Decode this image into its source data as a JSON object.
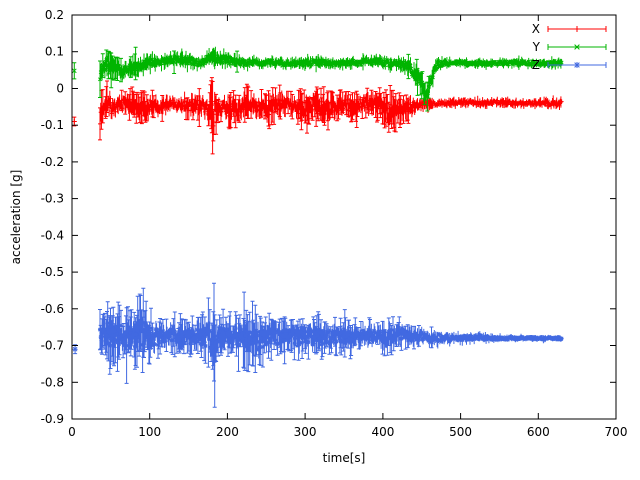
{
  "figure": {
    "background": "#ffffff",
    "axis_color": "#000000",
    "text_color": "#000000"
  },
  "chart_data": {
    "type": "scatter",
    "style": "points-with-errorbars",
    "title": "",
    "xlabel": "time[s]",
    "ylabel": "acceleration [g]",
    "xlim": [
      0,
      700
    ],
    "ylim": [
      -0.9,
      0.2
    ],
    "grid": false,
    "sample_step_s": 0.9,
    "xticks": [
      {
        "value": 0,
        "label": "0"
      },
      {
        "value": 100,
        "label": "100"
      },
      {
        "value": 200,
        "label": "200"
      },
      {
        "value": 300,
        "label": "300"
      },
      {
        "value": 400,
        "label": "400"
      },
      {
        "value": 500,
        "label": "500"
      },
      {
        "value": 600,
        "label": "600"
      },
      {
        "value": 700,
        "label": "700"
      }
    ],
    "yticks": [
      {
        "value": -0.9,
        "label": "-0.9"
      },
      {
        "value": -0.8,
        "label": "-0.8"
      },
      {
        "value": -0.7,
        "label": "-0.7"
      },
      {
        "value": -0.6,
        "label": "-0.6"
      },
      {
        "value": -0.5,
        "label": "-0.5"
      },
      {
        "value": -0.4,
        "label": "-0.4"
      },
      {
        "value": -0.3,
        "label": "-0.3"
      },
      {
        "value": -0.2,
        "label": "-0.2"
      },
      {
        "value": -0.1,
        "label": "-0.1"
      },
      {
        "value": 0,
        "label": "0"
      },
      {
        "value": 0.1,
        "label": "0.1"
      },
      {
        "value": 0.2,
        "label": "0.2"
      }
    ],
    "legend": {
      "position": "top-right",
      "entries": [
        {
          "label": "X",
          "color": "#ff0000",
          "marker": "plus"
        },
        {
          "label": "Y",
          "color": "#00b400",
          "marker": "cross"
        },
        {
          "label": "Z",
          "color": "#4169e1",
          "marker": "asterisk"
        }
      ]
    },
    "series": [
      {
        "name": "X",
        "color": "#ff0000",
        "marker": "plus",
        "seed": 101,
        "isolated_points": [
          [
            3,
            -0.09,
            0.012
          ]
        ],
        "envelope": [
          [
            36,
            -0.08,
            0.05
          ],
          [
            40,
            -0.04,
            0.045
          ],
          [
            46,
            -0.03,
            0.04
          ],
          [
            52,
            -0.06,
            0.035
          ],
          [
            58,
            -0.05,
            0.03
          ],
          [
            64,
            -0.045,
            0.03
          ],
          [
            72,
            -0.04,
            0.035
          ],
          [
            80,
            -0.05,
            0.04
          ],
          [
            88,
            -0.055,
            0.045
          ],
          [
            96,
            -0.05,
            0.035
          ],
          [
            104,
            -0.045,
            0.03
          ],
          [
            112,
            -0.05,
            0.025
          ],
          [
            120,
            -0.045,
            0.02
          ],
          [
            130,
            -0.04,
            0.02
          ],
          [
            140,
            -0.045,
            0.025
          ],
          [
            150,
            -0.05,
            0.03
          ],
          [
            160,
            -0.045,
            0.03
          ],
          [
            170,
            -0.05,
            0.03
          ],
          [
            178,
            -0.055,
            0.05
          ],
          [
            182,
            -0.07,
            0.1
          ],
          [
            186,
            -0.055,
            0.04
          ],
          [
            195,
            -0.05,
            0.035
          ],
          [
            205,
            -0.06,
            0.045
          ],
          [
            215,
            -0.055,
            0.04
          ],
          [
            222,
            -0.05,
            0.045
          ],
          [
            230,
            -0.045,
            0.035
          ],
          [
            240,
            -0.05,
            0.03
          ],
          [
            250,
            -0.055,
            0.04
          ],
          [
            258,
            -0.05,
            0.045
          ],
          [
            266,
            -0.045,
            0.035
          ],
          [
            275,
            -0.04,
            0.03
          ],
          [
            285,
            -0.045,
            0.03
          ],
          [
            295,
            -0.06,
            0.045
          ],
          [
            305,
            -0.055,
            0.045
          ],
          [
            312,
            -0.05,
            0.05
          ],
          [
            320,
            -0.055,
            0.045
          ],
          [
            328,
            -0.06,
            0.04
          ],
          [
            336,
            -0.05,
            0.035
          ],
          [
            344,
            -0.04,
            0.03
          ],
          [
            352,
            -0.045,
            0.035
          ],
          [
            360,
            -0.05,
            0.04
          ],
          [
            368,
            -0.045,
            0.03
          ],
          [
            376,
            -0.04,
            0.03
          ],
          [
            384,
            -0.045,
            0.03
          ],
          [
            392,
            -0.04,
            0.035
          ],
          [
            400,
            -0.05,
            0.04
          ],
          [
            408,
            -0.065,
            0.05
          ],
          [
            416,
            -0.06,
            0.045
          ],
          [
            424,
            -0.055,
            0.035
          ],
          [
            432,
            -0.05,
            0.03
          ],
          [
            440,
            -0.05,
            0.025
          ],
          [
            448,
            -0.045,
            0.02
          ],
          [
            456,
            -0.04,
            0.018
          ],
          [
            465,
            -0.042,
            0.015
          ],
          [
            475,
            -0.04,
            0.013
          ],
          [
            490,
            -0.04,
            0.012
          ],
          [
            510,
            -0.038,
            0.012
          ],
          [
            530,
            -0.04,
            0.012
          ],
          [
            550,
            -0.038,
            0.012
          ],
          [
            570,
            -0.04,
            0.012
          ],
          [
            590,
            -0.04,
            0.012
          ],
          [
            610,
            -0.04,
            0.013
          ],
          [
            630,
            -0.04,
            0.015
          ]
        ]
      },
      {
        "name": "Y",
        "color": "#00b400",
        "marker": "cross",
        "seed": 202,
        "isolated_points": [
          [
            3,
            0.048,
            0.022
          ]
        ],
        "envelope": [
          [
            36,
            0.04,
            0.045
          ],
          [
            40,
            0.06,
            0.04
          ],
          [
            46,
            0.07,
            0.035
          ],
          [
            52,
            0.055,
            0.03
          ],
          [
            58,
            0.05,
            0.03
          ],
          [
            64,
            0.045,
            0.03
          ],
          [
            70,
            0.05,
            0.028
          ],
          [
            78,
            0.055,
            0.025
          ],
          [
            86,
            0.06,
            0.025
          ],
          [
            94,
            0.065,
            0.022
          ],
          [
            102,
            0.07,
            0.02
          ],
          [
            110,
            0.072,
            0.02
          ],
          [
            120,
            0.075,
            0.02
          ],
          [
            130,
            0.08,
            0.02
          ],
          [
            140,
            0.078,
            0.018
          ],
          [
            150,
            0.075,
            0.02
          ],
          [
            158,
            0.072,
            0.018
          ],
          [
            166,
            0.07,
            0.015
          ],
          [
            174,
            0.078,
            0.022
          ],
          [
            182,
            0.085,
            0.025
          ],
          [
            190,
            0.08,
            0.02
          ],
          [
            198,
            0.078,
            0.018
          ],
          [
            206,
            0.075,
            0.02
          ],
          [
            215,
            0.072,
            0.018
          ],
          [
            225,
            0.07,
            0.015
          ],
          [
            235,
            0.072,
            0.015
          ],
          [
            245,
            0.07,
            0.014
          ],
          [
            255,
            0.072,
            0.014
          ],
          [
            265,
            0.07,
            0.014
          ],
          [
            275,
            0.068,
            0.014
          ],
          [
            285,
            0.07,
            0.014
          ],
          [
            295,
            0.068,
            0.015
          ],
          [
            305,
            0.07,
            0.016
          ],
          [
            315,
            0.072,
            0.016
          ],
          [
            325,
            0.07,
            0.015
          ],
          [
            335,
            0.068,
            0.014
          ],
          [
            345,
            0.068,
            0.014
          ],
          [
            355,
            0.07,
            0.014
          ],
          [
            365,
            0.07,
            0.014
          ],
          [
            375,
            0.072,
            0.015
          ],
          [
            385,
            0.075,
            0.016
          ],
          [
            395,
            0.073,
            0.016
          ],
          [
            405,
            0.07,
            0.018
          ],
          [
            415,
            0.068,
            0.018
          ],
          [
            425,
            0.065,
            0.018
          ],
          [
            432,
            0.06,
            0.02
          ],
          [
            440,
            0.045,
            0.03
          ],
          [
            448,
            0.02,
            0.035
          ],
          [
            454,
            -0.005,
            0.03
          ],
          [
            458,
            -0.015,
            0.025
          ],
          [
            462,
            0.02,
            0.03
          ],
          [
            466,
            0.05,
            0.025
          ],
          [
            470,
            0.065,
            0.018
          ],
          [
            480,
            0.068,
            0.014
          ],
          [
            495,
            0.07,
            0.012
          ],
          [
            515,
            0.07,
            0.012
          ],
          [
            535,
            0.068,
            0.012
          ],
          [
            555,
            0.07,
            0.012
          ],
          [
            575,
            0.07,
            0.012
          ],
          [
            595,
            0.07,
            0.012
          ],
          [
            615,
            0.07,
            0.012
          ],
          [
            630,
            0.07,
            0.012
          ]
        ]
      },
      {
        "name": "Z",
        "color": "#4169e1",
        "marker": "asterisk",
        "seed": 303,
        "isolated_points": [
          [
            4,
            -0.71,
            0.012
          ]
        ],
        "envelope": [
          [
            36,
            -0.68,
            0.06
          ],
          [
            40,
            -0.67,
            0.075
          ],
          [
            46,
            -0.675,
            0.08
          ],
          [
            52,
            -0.68,
            0.075
          ],
          [
            58,
            -0.672,
            0.07
          ],
          [
            64,
            -0.675,
            0.065
          ],
          [
            70,
            -0.68,
            0.06
          ],
          [
            76,
            -0.672,
            0.06
          ],
          [
            82,
            -0.675,
            0.065
          ],
          [
            88,
            -0.67,
            0.08
          ],
          [
            92,
            -0.675,
            0.095
          ],
          [
            96,
            -0.67,
            0.06
          ],
          [
            104,
            -0.675,
            0.05
          ],
          [
            112,
            -0.678,
            0.045
          ],
          [
            120,
            -0.675,
            0.04
          ],
          [
            130,
            -0.672,
            0.04
          ],
          [
            140,
            -0.675,
            0.045
          ],
          [
            150,
            -0.678,
            0.04
          ],
          [
            160,
            -0.675,
            0.042
          ],
          [
            170,
            -0.678,
            0.05
          ],
          [
            178,
            -0.68,
            0.06
          ],
          [
            183,
            -0.7,
            0.12
          ],
          [
            188,
            -0.678,
            0.055
          ],
          [
            196,
            -0.675,
            0.05
          ],
          [
            205,
            -0.678,
            0.05
          ],
          [
            214,
            -0.675,
            0.055
          ],
          [
            222,
            -0.678,
            0.06
          ],
          [
            230,
            -0.685,
            0.065
          ],
          [
            238,
            -0.69,
            0.07
          ],
          [
            246,
            -0.68,
            0.055
          ],
          [
            254,
            -0.675,
            0.05
          ],
          [
            262,
            -0.678,
            0.045
          ],
          [
            270,
            -0.675,
            0.04
          ],
          [
            280,
            -0.675,
            0.04
          ],
          [
            290,
            -0.678,
            0.042
          ],
          [
            300,
            -0.68,
            0.045
          ],
          [
            310,
            -0.675,
            0.05
          ],
          [
            318,
            -0.678,
            0.045
          ],
          [
            326,
            -0.68,
            0.04
          ],
          [
            334,
            -0.678,
            0.038
          ],
          [
            342,
            -0.675,
            0.035
          ],
          [
            350,
            -0.678,
            0.04
          ],
          [
            358,
            -0.68,
            0.04
          ],
          [
            366,
            -0.675,
            0.035
          ],
          [
            374,
            -0.672,
            0.033
          ],
          [
            382,
            -0.67,
            0.03
          ],
          [
            390,
            -0.672,
            0.03
          ],
          [
            398,
            -0.675,
            0.035
          ],
          [
            406,
            -0.678,
            0.04
          ],
          [
            414,
            -0.672,
            0.035
          ],
          [
            422,
            -0.67,
            0.033
          ],
          [
            430,
            -0.672,
            0.03
          ],
          [
            438,
            -0.675,
            0.028
          ],
          [
            446,
            -0.675,
            0.025
          ],
          [
            455,
            -0.676,
            0.022
          ],
          [
            465,
            -0.678,
            0.02
          ],
          [
            478,
            -0.678,
            0.018
          ],
          [
            492,
            -0.68,
            0.015
          ],
          [
            508,
            -0.679,
            0.013
          ],
          [
            525,
            -0.678,
            0.012
          ],
          [
            545,
            -0.68,
            0.01
          ],
          [
            565,
            -0.68,
            0.009
          ],
          [
            585,
            -0.68,
            0.008
          ],
          [
            605,
            -0.68,
            0.008
          ],
          [
            630,
            -0.68,
            0.008
          ]
        ]
      }
    ]
  }
}
